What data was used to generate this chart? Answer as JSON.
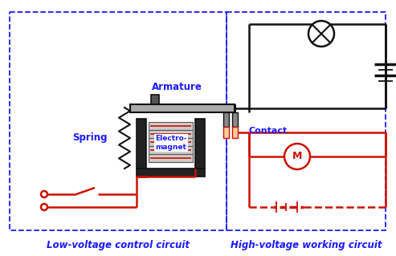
{
  "fig_width": 4.93,
  "fig_height": 3.19,
  "dpi": 100,
  "bg_color": "#ffffff",
  "border_color": "#1a1aff",
  "text_color_blue": "#1a1aff",
  "wire_color_black": "#111111",
  "wire_color_red": "#cc1100",
  "title_left": "Low-voltage control circuit",
  "title_right": "High-voltage working circuit",
  "label_armature": "Armature",
  "label_spring": "Spring",
  "label_electromagnet": "Electro-\nmagnet",
  "label_contact": "Contact"
}
